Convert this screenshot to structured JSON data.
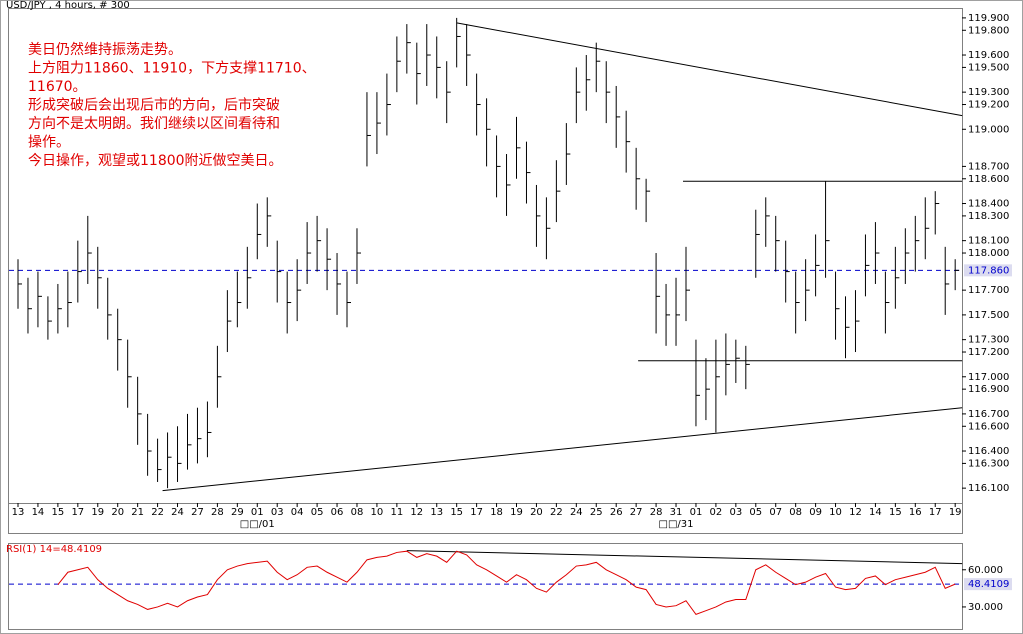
{
  "chart_data": [
    {
      "type": "hlc",
      "title": "USD/JPY , 4 hours, # 300",
      "annotation": [
        "美日仍然维持振荡走势。",
        "上方阻力11860、11910，下方支撑11710、",
        "11670。",
        "形成突破后会出现后市的方向，后市突破",
        "方向不是太明朗。我们继续以区间看待和",
        "操作。",
        "今日操作，观望或11800附近做空美日。"
      ],
      "annotation_color": "#e00000",
      "color": "#000000",
      "categories": [
        "13",
        null,
        "14",
        null,
        "15",
        null,
        "17",
        null,
        "19",
        null,
        "20",
        null,
        "21",
        null,
        "22",
        null,
        "24",
        null,
        "27",
        null,
        "28",
        null,
        "29",
        null,
        "01",
        null,
        "03",
        null,
        "04",
        null,
        "05",
        null,
        "06",
        null,
        "08",
        null,
        "10",
        null,
        "11",
        null,
        "12",
        null,
        "13",
        null,
        "15",
        null,
        "17",
        null,
        "18",
        null,
        "19",
        null,
        "20",
        null,
        "22",
        null,
        "24",
        null,
        "25",
        null,
        "26",
        null,
        "27",
        null,
        "28",
        null,
        "31",
        null,
        "01",
        null,
        "02",
        null,
        "03",
        null,
        "05",
        null,
        "07",
        null,
        "08",
        null,
        "09",
        null,
        "10",
        null,
        "12",
        null,
        "14",
        null,
        "15",
        null,
        "16",
        null,
        "17",
        null,
        "19"
      ],
      "month_categories": [
        null,
        null,
        null,
        null,
        null,
        null,
        null,
        null,
        null,
        null,
        null,
        null,
        null,
        null,
        null,
        null,
        null,
        null,
        null,
        null,
        null,
        null,
        null,
        null,
        "□□/01",
        null,
        null,
        null,
        null,
        null,
        null,
        null,
        null,
        null,
        null,
        null,
        null,
        null,
        null,
        null,
        null,
        null,
        null,
        null,
        null,
        null,
        null,
        null,
        null,
        null,
        null,
        null,
        null,
        null,
        null,
        null,
        null,
        null,
        null,
        null,
        null,
        null,
        null,
        null,
        null,
        null,
        "□□/31",
        null,
        null,
        null,
        null,
        null,
        null,
        null,
        null,
        null,
        null,
        null,
        null,
        null,
        null,
        null,
        null,
        null,
        null,
        null,
        null,
        null,
        null,
        null,
        null,
        null,
        null,
        null,
        null
      ],
      "high": [
        117.95,
        117.8,
        117.85,
        117.65,
        117.75,
        117.85,
        118.1,
        118.3,
        118.05,
        117.8,
        117.55,
        117.3,
        117.0,
        116.7,
        116.5,
        116.55,
        116.6,
        116.7,
        116.75,
        116.8,
        117.25,
        117.7,
        117.85,
        118.05,
        118.4,
        118.45,
        118.1,
        117.85,
        117.95,
        118.25,
        118.3,
        118.2,
        118.0,
        117.85,
        118.2,
        119.3,
        119.3,
        119.45,
        119.75,
        119.85,
        119.7,
        119.85,
        119.75,
        119.55,
        119.9,
        119.85,
        119.45,
        119.25,
        118.95,
        118.8,
        119.1,
        118.9,
        118.55,
        118.45,
        118.75,
        119.05,
        119.5,
        119.6,
        119.7,
        119.55,
        119.35,
        119.15,
        118.85,
        118.6,
        118.0,
        117.75,
        117.8,
        118.05,
        117.3,
        117.15,
        117.3,
        117.35,
        117.3,
        117.25,
        118.35,
        118.45,
        118.3,
        118.1,
        117.85,
        117.95,
        118.15,
        118.58,
        117.85,
        117.65,
        117.7,
        118.15,
        118.25,
        117.85,
        118.05,
        118.2,
        118.3,
        118.45,
        118.5,
        118.05,
        117.95
      ],
      "low": [
        117.55,
        117.35,
        117.4,
        117.3,
        117.35,
        117.4,
        117.6,
        117.75,
        117.55,
        117.3,
        117.05,
        116.75,
        116.45,
        116.2,
        116.15,
        116.1,
        116.15,
        116.25,
        116.3,
        116.35,
        116.75,
        117.2,
        117.4,
        117.55,
        117.95,
        118.05,
        117.6,
        117.35,
        117.45,
        117.75,
        117.85,
        117.7,
        117.5,
        117.4,
        117.75,
        118.7,
        118.8,
        118.95,
        119.3,
        119.45,
        119.2,
        119.35,
        119.25,
        119.05,
        119.5,
        119.35,
        118.95,
        118.7,
        118.45,
        118.3,
        118.6,
        118.4,
        118.05,
        117.95,
        118.25,
        118.55,
        119.05,
        119.15,
        119.3,
        119.05,
        118.85,
        118.65,
        118.35,
        118.25,
        117.35,
        117.25,
        117.25,
        117.45,
        116.6,
        116.65,
        116.55,
        116.85,
        116.95,
        116.9,
        117.8,
        118.05,
        117.85,
        117.6,
        117.35,
        117.45,
        117.65,
        117.8,
        117.3,
        117.15,
        117.2,
        117.65,
        117.75,
        117.35,
        117.55,
        117.75,
        117.85,
        117.95,
        118.15,
        117.5,
        117.7
      ],
      "close": [
        117.75,
        117.55,
        117.65,
        117.45,
        117.55,
        117.6,
        117.85,
        118.0,
        117.8,
        117.5,
        117.3,
        117.0,
        116.7,
        116.4,
        116.25,
        116.35,
        116.3,
        116.45,
        116.5,
        116.55,
        117.0,
        117.45,
        117.6,
        117.8,
        118.15,
        118.3,
        117.85,
        117.6,
        117.7,
        118.0,
        118.1,
        117.95,
        117.75,
        117.6,
        118.0,
        118.95,
        119.05,
        119.2,
        119.55,
        119.7,
        119.45,
        119.6,
        119.5,
        119.3,
        119.75,
        119.6,
        119.2,
        119.0,
        118.7,
        118.55,
        118.85,
        118.65,
        118.3,
        118.2,
        118.5,
        118.8,
        119.3,
        119.4,
        119.55,
        119.3,
        119.1,
        118.9,
        118.6,
        118.5,
        117.65,
        117.5,
        117.5,
        117.7,
        116.85,
        116.9,
        117.0,
        117.1,
        117.15,
        117.1,
        118.15,
        118.3,
        118.1,
        117.85,
        117.6,
        117.7,
        117.9,
        118.1,
        117.55,
        117.4,
        117.45,
        117.9,
        118.0,
        117.6,
        117.8,
        118.0,
        118.1,
        118.2,
        118.4,
        117.75,
        117.86
      ],
      "ylim": [
        115.98,
        119.98
      ],
      "yticks": [
        {
          "value": 119.9,
          "label": "119.900"
        },
        {
          "value": 119.8,
          "label": "119.800"
        },
        {
          "value": 119.6,
          "label": "119.600"
        },
        {
          "value": 119.5,
          "label": "119.500"
        },
        {
          "value": 119.3,
          "label": "119.300"
        },
        {
          "value": 119.2,
          "label": "119.200"
        },
        {
          "value": 119.0,
          "label": "119.000"
        },
        {
          "value": 118.7,
          "label": "118.700"
        },
        {
          "value": 118.6,
          "label": "118.600"
        },
        {
          "value": 118.4,
          "label": "118.400"
        },
        {
          "value": 118.3,
          "label": "118.300"
        },
        {
          "value": 118.1,
          "label": "118.100"
        },
        {
          "value": 118.0,
          "label": "118.000"
        },
        {
          "value": 117.7,
          "label": "117.700"
        },
        {
          "value": 117.5,
          "label": "117.500"
        },
        {
          "value": 117.3,
          "label": "117.300"
        },
        {
          "value": 117.2,
          "label": "117.200"
        },
        {
          "value": 117.0,
          "label": "117.000"
        },
        {
          "value": 116.9,
          "label": "116.900"
        },
        {
          "value": 116.7,
          "label": "116.700"
        },
        {
          "value": 116.6,
          "label": "116.600"
        },
        {
          "value": 116.4,
          "label": "116.400"
        },
        {
          "value": 116.3,
          "label": "116.300"
        },
        {
          "value": 116.1,
          "label": "116.100"
        }
      ],
      "reference_line": {
        "value": 117.86,
        "label": "117.860",
        "color": "#0000cc"
      },
      "trendlines": [
        {
          "x": [
            44,
            94.7
          ],
          "values": [
            119.86,
            119.11
          ]
        },
        {
          "x": [
            14.5,
            94.7
          ],
          "values": [
            116.08,
            116.75
          ]
        },
        {
          "x": [
            66.7,
            94.7
          ],
          "values": [
            118.58,
            118.58
          ]
        },
        {
          "x": [
            62.2,
            94.7
          ],
          "values": [
            117.13,
            117.13
          ]
        }
      ]
    },
    {
      "type": "line",
      "title": "RSI(1) 14=48.4109",
      "color": "#e00000",
      "values": [
        null,
        null,
        null,
        null,
        48,
        58,
        60,
        62,
        52,
        45,
        40,
        35,
        32,
        28,
        30,
        33,
        30,
        35,
        38,
        40,
        52,
        60,
        63,
        65,
        66,
        67,
        58,
        52,
        56,
        62,
        63,
        58,
        54,
        50,
        58,
        68,
        70,
        71,
        74,
        75,
        70,
        73,
        71,
        66,
        75,
        72,
        64,
        60,
        55,
        50,
        56,
        52,
        45,
        42,
        50,
        56,
        63,
        64,
        66,
        60,
        56,
        52,
        46,
        44,
        32,
        30,
        31,
        35,
        24,
        27,
        30,
        34,
        36,
        36,
        60,
        64,
        58,
        53,
        48,
        50,
        54,
        57,
        46,
        44,
        45,
        53,
        55,
        48,
        52,
        54,
        56,
        58,
        62,
        45,
        48.4109
      ],
      "ylim": [
        13,
        80
      ],
      "yticks": [
        {
          "value": 60,
          "label": "60.000"
        },
        {
          "value": 30,
          "label": "30.000"
        }
      ],
      "reference_line": {
        "value": 48.4109,
        "color": "#0000cc"
      },
      "trendlines": [
        {
          "x": [
            39,
            94.7
          ],
          "values": [
            75.5,
            65
          ]
        }
      ]
    }
  ]
}
